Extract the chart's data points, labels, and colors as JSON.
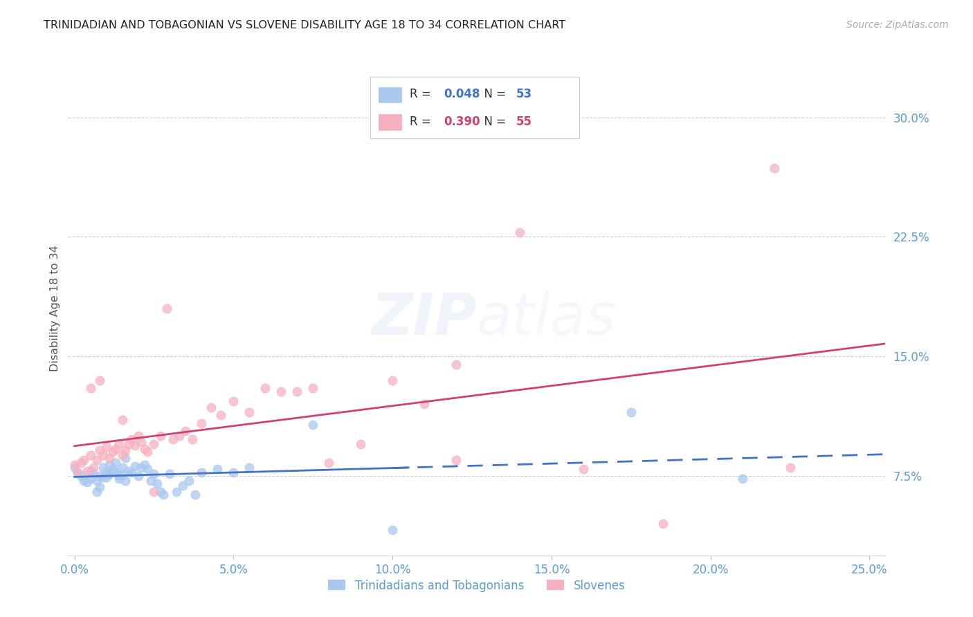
{
  "title": "TRINIDADIAN AND TOBAGONIAN VS SLOVENE DISABILITY AGE 18 TO 34 CORRELATION CHART",
  "source": "Source: ZipAtlas.com",
  "ylabel": "Disability Age 18 to 34",
  "xlabel_ticks": [
    0.0,
    0.05,
    0.1,
    0.15,
    0.2,
    0.25
  ],
  "xlabel_labels": [
    "0.0%",
    "5.0%",
    "10.0%",
    "15.0%",
    "20.0%",
    "25.0%"
  ],
  "ylabel_ticks": [
    0.075,
    0.15,
    0.225,
    0.3
  ],
  "ylabel_labels": [
    "7.5%",
    "15.0%",
    "22.5%",
    "30.0%"
  ],
  "xlim": [
    -0.002,
    0.255
  ],
  "ylim": [
    0.025,
    0.335
  ],
  "blue_scatter_color": "#a8c8f0",
  "pink_scatter_color": "#f5b0c0",
  "blue_line_color": "#4472c4",
  "pink_line_color": "#d04070",
  "title_color": "#222222",
  "axis_tick_color": "#5b9bd5",
  "legend_entry_blue": "Trinidadians and Tobagonians",
  "legend_entry_pink": "Slovenes",
  "blue_R": "0.048",
  "blue_N": "53",
  "pink_R": "0.390",
  "pink_N": "55",
  "blue_scatter_x": [
    0.0,
    0.001,
    0.002,
    0.003,
    0.004,
    0.005,
    0.005,
    0.006,
    0.007,
    0.007,
    0.008,
    0.008,
    0.009,
    0.009,
    0.01,
    0.01,
    0.011,
    0.011,
    0.012,
    0.012,
    0.013,
    0.013,
    0.014,
    0.014,
    0.015,
    0.015,
    0.016,
    0.016,
    0.017,
    0.018,
    0.019,
    0.02,
    0.021,
    0.022,
    0.023,
    0.024,
    0.025,
    0.026,
    0.027,
    0.028,
    0.03,
    0.032,
    0.034,
    0.036,
    0.038,
    0.04,
    0.045,
    0.05,
    0.055,
    0.075,
    0.1,
    0.175,
    0.21
  ],
  "blue_scatter_y": [
    0.08,
    0.077,
    0.075,
    0.072,
    0.071,
    0.073,
    0.078,
    0.076,
    0.065,
    0.072,
    0.068,
    0.075,
    0.074,
    0.08,
    0.074,
    0.077,
    0.076,
    0.082,
    0.079,
    0.078,
    0.077,
    0.083,
    0.075,
    0.073,
    0.076,
    0.08,
    0.072,
    0.086,
    0.078,
    0.077,
    0.081,
    0.075,
    0.08,
    0.082,
    0.079,
    0.072,
    0.076,
    0.07,
    0.065,
    0.063,
    0.076,
    0.065,
    0.069,
    0.072,
    0.063,
    0.077,
    0.079,
    0.077,
    0.08,
    0.107,
    0.041,
    0.115,
    0.073
  ],
  "pink_scatter_x": [
    0.0,
    0.001,
    0.002,
    0.003,
    0.004,
    0.005,
    0.006,
    0.007,
    0.008,
    0.009,
    0.01,
    0.011,
    0.012,
    0.013,
    0.014,
    0.015,
    0.016,
    0.017,
    0.018,
    0.019,
    0.02,
    0.021,
    0.022,
    0.023,
    0.025,
    0.027,
    0.029,
    0.031,
    0.033,
    0.035,
    0.037,
    0.04,
    0.043,
    0.046,
    0.05,
    0.055,
    0.06,
    0.065,
    0.07,
    0.075,
    0.08,
    0.09,
    0.1,
    0.11,
    0.12,
    0.14,
    0.16,
    0.185,
    0.22,
    0.225,
    0.005,
    0.008,
    0.015,
    0.025,
    0.12
  ],
  "pink_scatter_y": [
    0.082,
    0.077,
    0.083,
    0.085,
    0.078,
    0.088,
    0.08,
    0.085,
    0.091,
    0.088,
    0.093,
    0.086,
    0.09,
    0.092,
    0.095,
    0.088,
    0.091,
    0.095,
    0.098,
    0.094,
    0.1,
    0.096,
    0.092,
    0.09,
    0.095,
    0.1,
    0.18,
    0.098,
    0.1,
    0.103,
    0.098,
    0.108,
    0.118,
    0.113,
    0.122,
    0.115,
    0.13,
    0.128,
    0.128,
    0.13,
    0.083,
    0.095,
    0.135,
    0.12,
    0.145,
    0.228,
    0.079,
    0.045,
    0.268,
    0.08,
    0.13,
    0.135,
    0.11,
    0.065,
    0.085
  ]
}
